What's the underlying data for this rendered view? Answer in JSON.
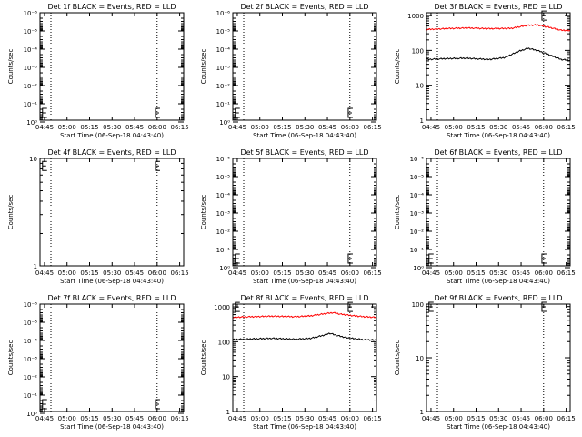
{
  "chart_data": [
    {
      "type": "line",
      "title": "Det 1f BLACK = Events, RED = LLD",
      "xlabel": "Start Time (06-Sep-18 04:43:40)",
      "ylabel": "Counts/sec",
      "x_ticks": [
        "04:45",
        "05:00",
        "05:15",
        "05:30",
        "05:45",
        "06:00",
        "06:15"
      ],
      "x_range_minutes": [
        -1.67,
        94
      ],
      "y_scale": "log",
      "y_ticks": [
        "10⁰",
        "10⁻¹",
        "10⁻²",
        "10⁻³",
        "10⁻⁴",
        "10⁻⁵",
        "10⁻⁶"
      ],
      "y_ticks_exp": [
        0,
        -1,
        -2,
        -3,
        -4,
        -5,
        -6
      ],
      "y_range_exp": [
        -0.1,
        -6
      ],
      "vlines_minutes": [
        5.6,
        76.3
      ],
      "markers": [
        {
          "x": 0,
          "exp": -0.5
        },
        {
          "x": 75.2,
          "exp": -0.5
        }
      ],
      "series": []
    },
    {
      "type": "line",
      "title": "Det 2f BLACK = Events, RED = LLD",
      "xlabel": "Start Time (06-Sep-18 04:43:40)",
      "ylabel": "Counts/sec",
      "x_ticks": [
        "04:45",
        "05:00",
        "05:15",
        "05:30",
        "05:45",
        "06:00",
        "06:15"
      ],
      "x_range_minutes": [
        -1.67,
        94
      ],
      "y_scale": "log",
      "y_ticks": [
        "10⁰",
        "10⁻¹",
        "10⁻²",
        "10⁻³",
        "10⁻⁴",
        "10⁻⁵",
        "10⁻⁶"
      ],
      "y_ticks_exp": [
        0,
        -1,
        -2,
        -3,
        -4,
        -5,
        -6
      ],
      "y_range_exp": [
        -0.1,
        -6
      ],
      "vlines_minutes": [
        5.6,
        76.3
      ],
      "markers": [
        {
          "x": 0,
          "exp": -0.5
        },
        {
          "x": 75.2,
          "exp": -0.5
        }
      ],
      "series": []
    },
    {
      "type": "line",
      "title": "Det 3f BLACK = Events, RED = LLD",
      "xlabel": "Start Time (06-Sep-18 04:43:40)",
      "ylabel": "Counts/sec",
      "x_ticks": [
        "04:45",
        "05:00",
        "05:15",
        "05:30",
        "05:45",
        "06:00",
        "06:15"
      ],
      "x_range_minutes": [
        -1.67,
        94
      ],
      "y_scale": "log",
      "y_ticks": [
        "1",
        "10",
        "100",
        "1000"
      ],
      "y_ticks_exp": [
        0,
        1,
        2,
        3
      ],
      "y_range_exp": [
        0,
        3.08
      ],
      "vlines_minutes": [
        5.6,
        76.3
      ],
      "markers": [
        {
          "x": 75.2,
          "exp": 3.0
        }
      ],
      "series": [
        {
          "color": "#ff0000",
          "x": [
            -1.5,
            10,
            25,
            40,
            55,
            65,
            72,
            80,
            88,
            94
          ],
          "y": [
            400,
            420,
            440,
            420,
            430,
            520,
            540,
            460,
            380,
            370
          ]
        },
        {
          "color": "#000000",
          "x": [
            -1.5,
            10,
            25,
            40,
            50,
            60,
            66,
            72,
            80,
            88,
            94
          ],
          "y": [
            55,
            58,
            60,
            55,
            62,
            95,
            115,
            100,
            75,
            55,
            52
          ]
        }
      ]
    },
    {
      "type": "line",
      "title": "Det 4f BLACK = Events, RED = LLD",
      "xlabel": "Start Time (06-Sep-18 04:43:40)",
      "ylabel": "Counts/sec",
      "x_ticks": [
        "04:45",
        "05:00",
        "05:15",
        "05:30",
        "05:45",
        "06:00",
        "06:15"
      ],
      "x_range_minutes": [
        -1.67,
        94
      ],
      "y_scale": "log",
      "y_ticks": [
        "1",
        "10"
      ],
      "y_ticks_exp": [
        0,
        1
      ],
      "y_range_exp": [
        0,
        1
      ],
      "vlines_minutes": [
        5.6,
        76.3
      ],
      "markers": [
        {
          "x": 0,
          "exp": 0.93
        },
        {
          "x": 75.2,
          "exp": 0.93
        }
      ],
      "series": []
    },
    {
      "type": "line",
      "title": "Det 5f BLACK = Events, RED = LLD",
      "xlabel": "Start Time (06-Sep-18 04:43:40)",
      "ylabel": "Counts/sec",
      "x_ticks": [
        "04:45",
        "05:00",
        "05:15",
        "05:30",
        "05:45",
        "06:00",
        "06:15"
      ],
      "x_range_minutes": [
        -1.67,
        94
      ],
      "y_scale": "log",
      "y_ticks": [
        "10⁰",
        "10⁻¹",
        "10⁻²",
        "10⁻³",
        "10⁻⁴",
        "10⁻⁵",
        "10⁻⁶"
      ],
      "y_ticks_exp": [
        0,
        -1,
        -2,
        -3,
        -4,
        -5,
        -6
      ],
      "y_range_exp": [
        -0.1,
        -6
      ],
      "vlines_minutes": [
        5.6,
        76.3
      ],
      "markers": [
        {
          "x": 0,
          "exp": -0.5
        },
        {
          "x": 75.2,
          "exp": -0.5
        }
      ],
      "series": []
    },
    {
      "type": "line",
      "title": "Det 6f BLACK = Events, RED = LLD",
      "xlabel": "Start Time (06-Sep-18 04:43:40)",
      "ylabel": "Counts/sec",
      "x_ticks": [
        "04:45",
        "05:00",
        "05:15",
        "05:30",
        "05:45",
        "06:00",
        "06:15"
      ],
      "x_range_minutes": [
        -1.67,
        94
      ],
      "y_scale": "log",
      "y_ticks": [
        "10⁰",
        "10⁻¹",
        "10⁻²",
        "10⁻³",
        "10⁻⁴",
        "10⁻⁵",
        "10⁻⁶"
      ],
      "y_ticks_exp": [
        0,
        -1,
        -2,
        -3,
        -4,
        -5,
        -6
      ],
      "y_range_exp": [
        -0.1,
        -6
      ],
      "vlines_minutes": [
        5.6,
        76.3
      ],
      "markers": [
        {
          "x": 0,
          "exp": -0.5
        },
        {
          "x": 75.2,
          "exp": -0.5
        }
      ],
      "series": []
    },
    {
      "type": "line",
      "title": "Det 7f BLACK = Events, RED = LLD",
      "xlabel": "Start Time (06-Sep-18 04:43:40)",
      "ylabel": "Counts/sec",
      "x_ticks": [
        "04:45",
        "05:00",
        "05:15",
        "05:30",
        "05:45",
        "06:00",
        "06:15"
      ],
      "x_range_minutes": [
        -1.67,
        94
      ],
      "y_scale": "log",
      "y_ticks": [
        "10⁰",
        "10⁻¹",
        "10⁻²",
        "10⁻³",
        "10⁻⁴",
        "10⁻⁵",
        "10⁻⁶"
      ],
      "y_ticks_exp": [
        0,
        -1,
        -2,
        -3,
        -4,
        -5,
        -6
      ],
      "y_range_exp": [
        -0.1,
        -6
      ],
      "vlines_minutes": [
        5.6,
        76.3
      ],
      "markers": [
        {
          "x": 0,
          "exp": -0.5
        },
        {
          "x": 75.2,
          "exp": -0.5
        }
      ],
      "series": []
    },
    {
      "type": "line",
      "title": "Det 8f BLACK = Events, RED = LLD",
      "xlabel": "Start Time (06-Sep-18 04:43:40)",
      "ylabel": "Counts/sec",
      "x_ticks": [
        "04:45",
        "05:00",
        "05:15",
        "05:30",
        "05:45",
        "06:00",
        "06:15"
      ],
      "x_range_minutes": [
        -1.67,
        94
      ],
      "y_scale": "log",
      "y_ticks": [
        "1",
        "10",
        "100",
        "1000"
      ],
      "y_ticks_exp": [
        0,
        1,
        2,
        3
      ],
      "y_range_exp": [
        0,
        3.08
      ],
      "vlines_minutes": [
        5.6,
        76.3
      ],
      "markers": [
        {
          "x": 0,
          "exp": 3.0
        },
        {
          "x": 75.2,
          "exp": 3.0
        }
      ],
      "series": [
        {
          "color": "#ff0000",
          "x": [
            -1.5,
            10,
            25,
            40,
            50,
            60,
            65,
            70,
            78,
            86,
            94
          ],
          "y": [
            500,
            520,
            540,
            520,
            550,
            640,
            680,
            620,
            560,
            520,
            500
          ]
        },
        {
          "color": "#000000",
          "x": [
            -1.5,
            10,
            25,
            40,
            50,
            58,
            63,
            68,
            75,
            85,
            94
          ],
          "y": [
            115,
            120,
            125,
            118,
            125,
            150,
            175,
            150,
            128,
            115,
            112
          ]
        }
      ]
    },
    {
      "type": "line",
      "title": "Det 9f BLACK = Events, RED = LLD",
      "xlabel": "Start Time (06-Sep-18 04:43:40)",
      "ylabel": "Counts/sec",
      "x_ticks": [
        "04:45",
        "05:00",
        "05:15",
        "05:30",
        "05:45",
        "06:00",
        "06:15"
      ],
      "x_range_minutes": [
        -1.67,
        94
      ],
      "y_scale": "log",
      "y_ticks": [
        "1",
        "10",
        "100"
      ],
      "y_ticks_exp": [
        0,
        1,
        2
      ],
      "y_range_exp": [
        0,
        2
      ],
      "vlines_minutes": [
        5.6,
        76.3
      ],
      "markers": [
        {
          "x": 0,
          "exp": 1.95
        },
        {
          "x": 75.2,
          "exp": 1.95
        }
      ],
      "series": []
    }
  ]
}
